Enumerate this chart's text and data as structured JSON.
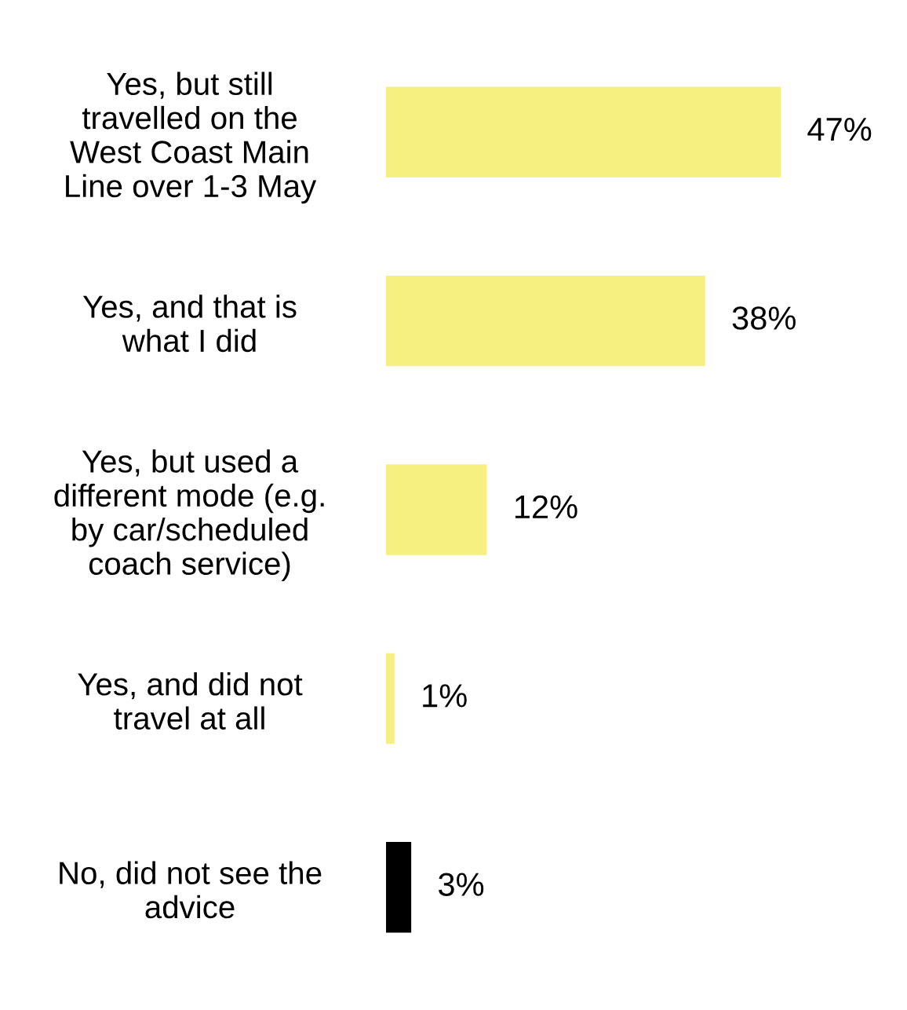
{
  "chart_data": {
    "type": "bar",
    "orientation": "horizontal",
    "categories": [
      "Yes, but still\ntravelled on the\nWest Coast Main\nLine over 1-3 May",
      "Yes, and that is\nwhat I did",
      "Yes, but used a\ndifferent mode (e.g.\nby car/scheduled\ncoach service)",
      "Yes, and did not\ntravel at all",
      "No, did not see the\nadvice"
    ],
    "values": [
      47,
      38,
      12,
      1,
      3
    ],
    "colors": [
      "#f5f07f",
      "#f5f07f",
      "#f5f07f",
      "#f5f07f",
      "#000000"
    ],
    "value_labels": [
      "47%",
      "38%",
      "12%",
      "1%",
      "3%"
    ]
  }
}
